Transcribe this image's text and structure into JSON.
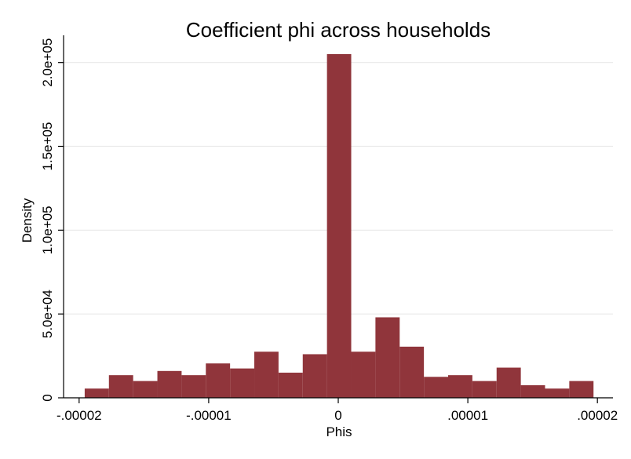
{
  "chart_data": {
    "type": "histogram",
    "title": "Coefficient phi across households",
    "xlabel": "Phis",
    "ylabel": "Density",
    "xlim": [
      -2.12e-05,
      2.12e-05
    ],
    "ylim": [
      0,
      205000
    ],
    "x_ticks": [
      {
        "value": -2e-05,
        "label": "-.00002"
      },
      {
        "value": -1e-05,
        "label": "-.00001"
      },
      {
        "value": 0,
        "label": "0"
      },
      {
        "value": 1e-05,
        "label": ".00001"
      },
      {
        "value": 2e-05,
        "label": ".00002"
      }
    ],
    "y_ticks": [
      {
        "value": 0,
        "label": "0"
      },
      {
        "value": 50000,
        "label": "5.0e+04"
      },
      {
        "value": 100000,
        "label": "1.0e+05"
      },
      {
        "value": 150000,
        "label": "1.5e+05"
      },
      {
        "value": 200000,
        "label": "2.0e+05"
      }
    ],
    "bins": [
      {
        "start": -1.957e-05,
        "end": -1.77e-05,
        "density": 5500
      },
      {
        "start": -1.77e-05,
        "end": -1.583e-05,
        "density": 13500
      },
      {
        "start": -1.583e-05,
        "end": -1.396e-05,
        "density": 10000
      },
      {
        "start": -1.396e-05,
        "end": -1.209e-05,
        "density": 16000
      },
      {
        "start": -1.209e-05,
        "end": -1.022e-05,
        "density": 13500
      },
      {
        "start": -1.022e-05,
        "end": -8.35e-06,
        "density": 20500
      },
      {
        "start": -8.35e-06,
        "end": -6.48e-06,
        "density": 17500
      },
      {
        "start": -6.48e-06,
        "end": -4.61e-06,
        "density": 27500
      },
      {
        "start": -4.61e-06,
        "end": -2.74e-06,
        "density": 15000
      },
      {
        "start": -2.74e-06,
        "end": -8.7e-07,
        "density": 26000
      },
      {
        "start": -8.7e-07,
        "end": 1e-06,
        "density": 205000
      },
      {
        "start": 1e-06,
        "end": 2.87e-06,
        "density": 27500
      },
      {
        "start": 2.87e-06,
        "end": 4.74e-06,
        "density": 48000
      },
      {
        "start": 4.74e-06,
        "end": 6.61e-06,
        "density": 30500
      },
      {
        "start": 6.61e-06,
        "end": 8.48e-06,
        "density": 12500
      },
      {
        "start": 8.48e-06,
        "end": 1.035e-05,
        "density": 13500
      },
      {
        "start": 1.035e-05,
        "end": 1.222e-05,
        "density": 10000
      },
      {
        "start": 1.222e-05,
        "end": 1.409e-05,
        "density": 18000
      },
      {
        "start": 1.409e-05,
        "end": 1.596e-05,
        "density": 7500
      },
      {
        "start": 1.596e-05,
        "end": 1.783e-05,
        "density": 5500
      },
      {
        "start": 1.783e-05,
        "end": 1.97e-05,
        "density": 10000
      }
    ],
    "bar_color": "#90353b",
    "grid_color": "#eaeaea",
    "grid": true
  }
}
